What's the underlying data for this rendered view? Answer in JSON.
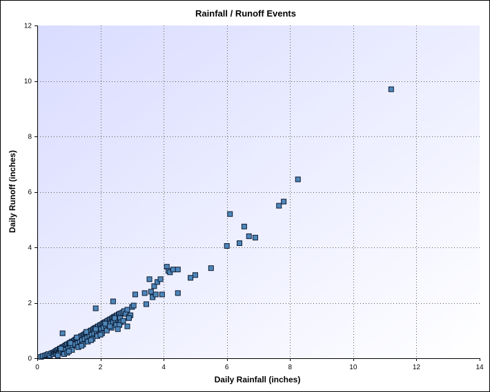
{
  "chart_data": {
    "type": "scatter",
    "title": "Rainfall / Runoff Events",
    "xlabel": "Daily Rainfall (inches)",
    "ylabel": "Daily Runoff (inches)",
    "xlim": [
      0,
      14
    ],
    "ylim": [
      0,
      12
    ],
    "x_ticks": [
      0,
      2,
      4,
      6,
      8,
      10,
      12,
      14
    ],
    "y_ticks": [
      0,
      2,
      4,
      6,
      8,
      10,
      12
    ],
    "grid": true,
    "legend": "none",
    "marker_color": "#4f86b8",
    "marker_edge_color": "#0b1b33",
    "background_gradient": [
      "#d9dcff",
      "#ffffff"
    ],
    "series": [
      {
        "x": [
          0.12,
          0.18,
          0.25,
          0.3,
          0.35,
          0.4,
          0.45,
          0.5,
          0.52,
          0.55,
          0.58,
          0.6,
          0.62,
          0.65,
          0.68,
          0.7,
          0.72,
          0.75,
          0.78,
          0.8,
          0.82,
          0.85,
          0.88,
          0.9,
          0.92,
          0.95,
          0.98,
          1.0,
          1.02,
          1.05,
          1.08,
          1.1,
          1.12,
          1.15,
          1.18,
          1.2,
          1.22,
          1.25,
          1.28,
          1.3,
          1.32,
          1.35,
          1.38,
          1.4,
          1.42,
          1.45,
          1.48,
          1.5,
          1.52,
          1.55,
          1.58,
          1.6,
          1.62,
          1.65,
          1.68,
          1.7,
          1.72,
          1.75,
          1.78,
          1.8,
          1.82,
          1.85,
          1.88,
          1.9,
          1.92,
          1.95,
          1.98,
          2.0,
          2.02,
          2.05,
          2.08,
          2.1,
          2.12,
          2.15,
          2.18,
          2.2,
          2.22,
          2.25,
          2.28,
          2.3,
          2.32,
          2.35,
          2.38,
          2.4,
          2.42,
          2.45,
          2.48,
          2.5,
          2.52,
          2.55,
          2.58,
          2.6,
          2.62,
          2.65,
          2.7,
          2.75,
          2.8,
          2.85,
          2.9,
          2.95,
          0.85,
          0.95,
          1.1,
          1.3,
          1.45,
          1.6,
          1.75,
          1.9,
          2.05,
          2.2,
          2.35,
          2.5,
          2.65,
          0.75,
          1.05,
          1.25,
          1.55,
          1.85,
          2.15,
          2.45,
          2.6,
          2.72,
          2.85,
          0.65,
          1.0,
          1.4,
          1.7,
          2.0,
          2.3,
          2.55,
          2.9,
          3.0,
          3.05,
          3.1,
          3.4,
          3.45,
          3.55,
          3.6,
          3.65,
          3.7,
          3.75,
          3.8,
          3.9,
          3.95,
          4.1,
          4.15,
          4.2,
          4.3,
          4.45,
          4.45,
          4.85,
          5.0,
          5.5,
          6.0,
          6.1,
          6.4,
          6.55,
          6.7,
          6.9,
          7.65,
          7.8,
          8.25,
          11.2,
          0.8,
          1.85,
          2.4,
          2.9
        ],
        "y": [
          0.05,
          0.08,
          0.1,
          0.12,
          0.15,
          0.1,
          0.18,
          0.2,
          0.15,
          0.22,
          0.25,
          0.18,
          0.28,
          0.3,
          0.2,
          0.32,
          0.35,
          0.22,
          0.38,
          0.4,
          0.28,
          0.42,
          0.45,
          0.3,
          0.48,
          0.5,
          0.35,
          0.52,
          0.55,
          0.4,
          0.58,
          0.6,
          0.45,
          0.62,
          0.65,
          0.5,
          0.68,
          0.7,
          0.55,
          0.72,
          0.75,
          0.6,
          0.78,
          0.8,
          0.65,
          0.82,
          0.85,
          0.7,
          0.88,
          0.9,
          0.75,
          0.92,
          0.95,
          0.8,
          0.98,
          1.0,
          0.85,
          1.02,
          1.05,
          0.9,
          1.08,
          1.1,
          0.95,
          1.12,
          1.15,
          1.0,
          1.18,
          1.2,
          1.05,
          1.22,
          1.25,
          1.1,
          1.28,
          1.3,
          1.15,
          1.32,
          1.35,
          1.2,
          1.38,
          1.4,
          1.25,
          1.42,
          1.45,
          1.3,
          1.48,
          1.5,
          1.35,
          1.52,
          1.55,
          1.4,
          1.58,
          1.6,
          1.45,
          1.62,
          1.65,
          1.7,
          1.6,
          1.75,
          1.5,
          1.55,
          0.15,
          0.2,
          0.3,
          0.4,
          0.5,
          0.6,
          0.7,
          0.8,
          0.9,
          1.0,
          1.1,
          1.2,
          1.3,
          0.35,
          0.55,
          0.75,
          0.95,
          1.05,
          1.25,
          1.45,
          1.2,
          1.35,
          1.15,
          0.1,
          0.25,
          0.45,
          0.65,
          0.85,
          1.15,
          1.05,
          1.45,
          1.85,
          1.9,
          2.3,
          2.35,
          1.95,
          2.85,
          2.4,
          2.2,
          2.6,
          2.3,
          2.75,
          2.85,
          2.3,
          3.3,
          3.15,
          3.1,
          3.2,
          3.2,
          2.35,
          2.9,
          3.0,
          3.25,
          4.05,
          5.2,
          4.15,
          4.75,
          4.4,
          4.35,
          5.5,
          5.65,
          6.45,
          9.7,
          0.9,
          1.8,
          2.05,
          1.45
        ]
      }
    ]
  }
}
